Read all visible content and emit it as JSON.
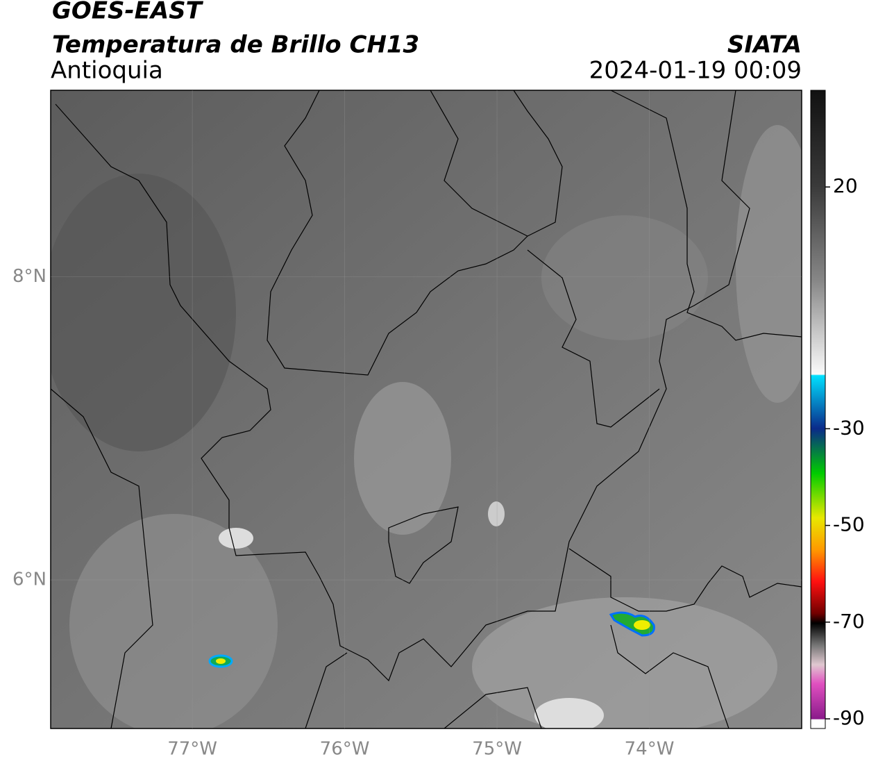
{
  "header": {
    "title": "GOES-EAST",
    "subtitle": "Temperatura de Brillo CH13",
    "region": "Antioquia",
    "source": "SIATA",
    "datetime": "2024-01-19 00:09"
  },
  "map": {
    "xlim": [
      -77.93,
      -73.0
    ],
    "ylim": [
      5.02,
      9.23
    ],
    "xticks": [
      {
        "value": -77,
        "label": "77°W"
      },
      {
        "value": -76,
        "label": "76°W"
      },
      {
        "value": -75,
        "label": "75°W"
      },
      {
        "value": -74,
        "label": "74°W"
      }
    ],
    "yticks": [
      {
        "value": 8,
        "label": "8°N"
      },
      {
        "value": 6,
        "label": "6°N"
      }
    ],
    "grid": true
  },
  "colorbar": {
    "lim": [
      -92,
      40
    ],
    "ticks": [
      20,
      -30,
      -50,
      -70,
      -90
    ]
  }
}
